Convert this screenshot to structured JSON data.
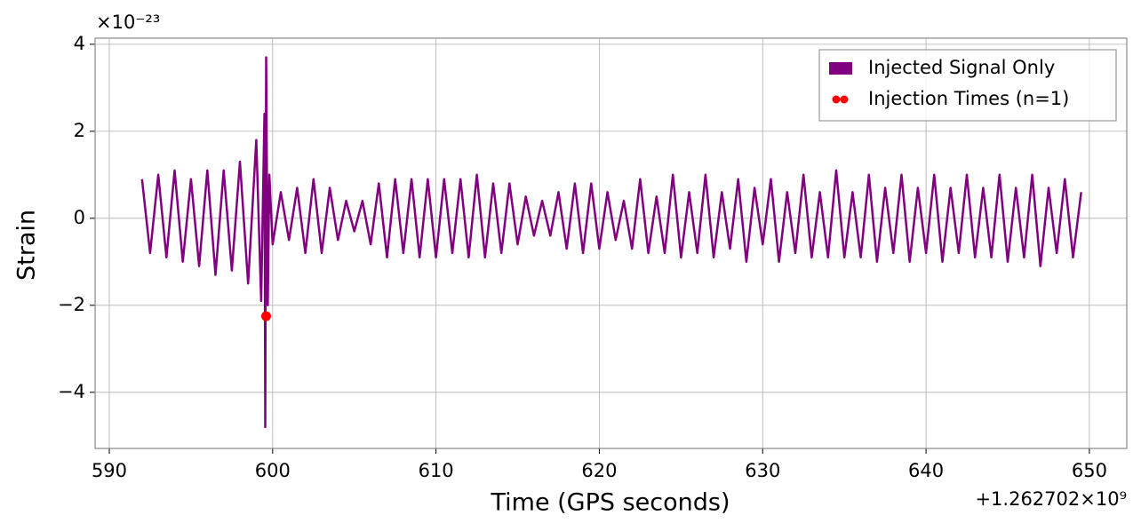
{
  "chart_data": {
    "type": "line",
    "x_label": "Time (GPS seconds)",
    "y_label": "Strain",
    "x_offset_label": "+1.262702×10⁹",
    "y_offset_label": "×10⁻²³",
    "xlim": [
      589.13,
      652.29
    ],
    "ylim": [
      -5.29,
      4.14
    ],
    "xticks": [
      590,
      600,
      610,
      620,
      630,
      640,
      650
    ],
    "yticks": [
      {
        "value": -4,
        "label": "−4"
      },
      {
        "value": -2,
        "label": "−2"
      },
      0,
      2,
      4
    ],
    "grid": true,
    "legend": "upper right",
    "series": [
      {
        "name": "Injected Signal Only",
        "type": "line",
        "color": "#800080",
        "x": [
          592.0,
          592.5,
          593.0,
          593.5,
          594.0,
          594.5,
          595.0,
          595.5,
          596.0,
          596.5,
          597.0,
          597.5,
          598.0,
          598.5,
          599.0,
          599.3,
          599.5,
          599.55,
          599.6,
          599.7,
          599.8,
          600.0,
          600.5,
          601.0,
          601.5,
          602.0,
          602.5,
          603.0,
          603.5,
          604.0,
          604.5,
          605.0,
          605.5,
          606.0,
          606.5,
          607.0,
          607.5,
          608.0,
          608.5,
          609.0,
          609.5,
          610.0,
          610.5,
          611.0,
          611.5,
          612.0,
          612.5,
          613.0,
          613.5,
          614.0,
          614.5,
          615.0,
          615.5,
          616.0,
          616.5,
          617.0,
          617.5,
          618.0,
          618.5,
          619.0,
          619.5,
          620.0,
          620.5,
          621.0,
          621.5,
          622.0,
          622.5,
          623.0,
          623.5,
          624.0,
          624.5,
          625.0,
          625.5,
          626.0,
          626.5,
          627.0,
          627.5,
          628.0,
          628.5,
          629.0,
          629.5,
          630.0,
          630.5,
          631.0,
          631.5,
          632.0,
          632.5,
          633.0,
          633.5,
          634.0,
          634.5,
          635.0,
          635.5,
          636.0,
          636.5,
          637.0,
          637.5,
          638.0,
          638.5,
          639.0,
          639.5,
          640.0,
          640.5,
          641.0,
          641.5,
          642.0,
          642.5,
          643.0,
          643.5,
          644.0,
          644.5,
          645.0,
          645.5,
          646.0,
          646.5,
          647.0,
          647.5,
          648.0,
          648.5,
          649.0,
          649.5
        ],
        "values": [
          0.9,
          -0.8,
          1.0,
          -0.9,
          1.1,
          -1.0,
          0.9,
          -1.1,
          1.1,
          -1.3,
          1.1,
          -1.2,
          1.3,
          -1.5,
          1.8,
          -1.9,
          2.4,
          -4.8,
          3.7,
          -2.0,
          1.0,
          -0.6,
          0.6,
          -0.5,
          0.7,
          -0.8,
          0.9,
          -0.8,
          0.7,
          -0.5,
          0.4,
          -0.3,
          0.4,
          -0.6,
          0.8,
          -0.9,
          0.9,
          -0.8,
          0.9,
          -0.9,
          0.9,
          -0.9,
          0.9,
          -0.8,
          0.9,
          -0.9,
          1.0,
          -0.9,
          0.8,
          -0.8,
          0.8,
          -0.6,
          0.5,
          -0.4,
          0.4,
          -0.4,
          0.6,
          -0.7,
          0.8,
          -0.8,
          0.8,
          -0.7,
          0.6,
          -0.5,
          0.4,
          -0.7,
          0.9,
          -0.8,
          0.5,
          -0.8,
          1.0,
          -0.9,
          0.6,
          -0.8,
          1.0,
          -0.9,
          0.6,
          -0.7,
          0.9,
          -1.0,
          0.7,
          -0.6,
          0.9,
          -1.0,
          0.6,
          -0.8,
          1.0,
          -0.9,
          0.6,
          -0.9,
          1.1,
          -0.9,
          0.6,
          -0.9,
          1.0,
          -1.0,
          0.7,
          -0.8,
          1.0,
          -1.0,
          0.7,
          -0.8,
          1.0,
          -1.0,
          0.7,
          -0.8,
          1.0,
          -0.9,
          0.7,
          -0.9,
          1.0,
          -1.0,
          0.7,
          -0.9,
          1.0,
          -1.1,
          0.7,
          -0.8,
          0.9,
          -0.9,
          0.6
        ]
      },
      {
        "name": "Injection Times (n=1)",
        "type": "scatter",
        "color": "#ff0000",
        "x": [
          599.6
        ],
        "values": [
          -2.25
        ]
      }
    ]
  }
}
